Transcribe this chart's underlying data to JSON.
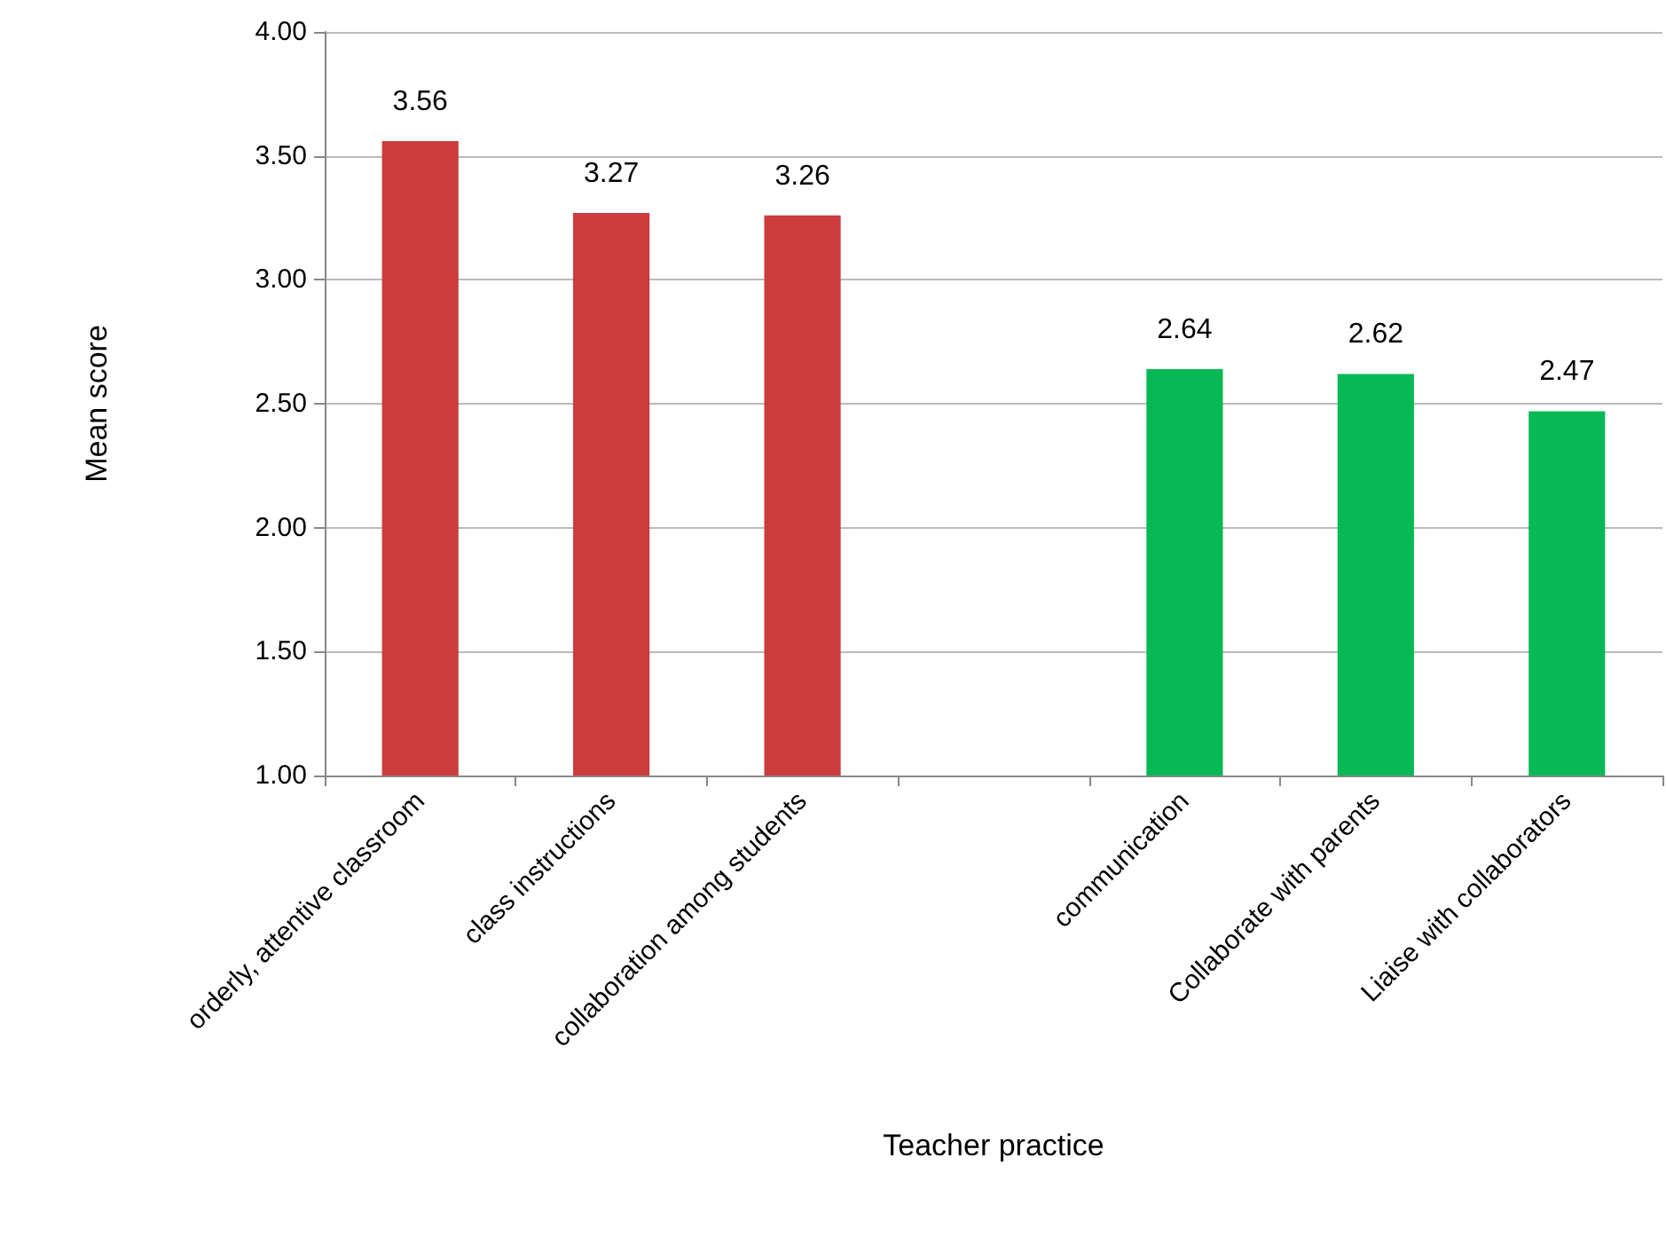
{
  "chart_data": {
    "type": "bar",
    "xlabel": "Teacher practice",
    "ylabel": "Mean score",
    "categories": [
      "orderly, attentive classroom",
      "class instructions",
      "collaboration among students",
      null,
      "communication",
      "Collaborate with parents",
      "Liaise with collaborators"
    ],
    "values": [
      3.56,
      3.27,
      3.26,
      null,
      2.64,
      2.62,
      2.47
    ],
    "colors": [
      "#cc3c3c",
      "#cc3c3c",
      "#cc3c3c",
      null,
      "#07b955",
      "#07b955",
      "#07b955"
    ],
    "ylim": [
      1,
      4
    ],
    "yticks": [
      {
        "value": 1,
        "label": "1.00"
      },
      {
        "value": 1.5,
        "label": "1.50"
      },
      {
        "value": 2,
        "label": "2.00"
      },
      {
        "value": 2.5,
        "label": "2.50"
      },
      {
        "value": 3,
        "label": "3.00"
      },
      {
        "value": 3.5,
        "label": "3.50"
      },
      {
        "value": 4,
        "label": "4.00"
      }
    ],
    "grid": "y",
    "data_labels": true
  }
}
